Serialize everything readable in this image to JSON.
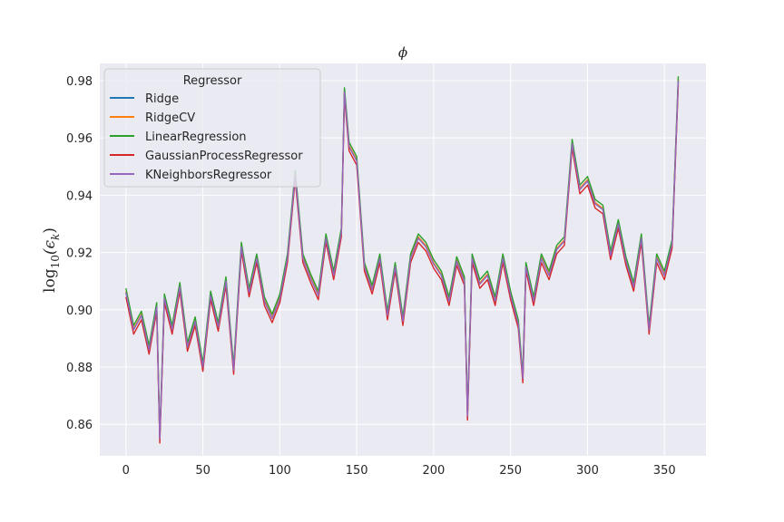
{
  "chart_data": {
    "type": "line",
    "title": "ϕ",
    "xlabel": "",
    "ylabel": "log10(εk)",
    "ylabel_parts": {
      "base": "log",
      "sub": "10",
      "arg": "(ϵ",
      "argsub": "k",
      "close": ")"
    },
    "xlim": [
      -17,
      377
    ],
    "ylim": [
      0.849,
      0.986
    ],
    "xticks": [
      0,
      50,
      100,
      150,
      200,
      250,
      300,
      350
    ],
    "yticks": [
      0.86,
      0.88,
      0.9,
      0.92,
      0.94,
      0.96,
      0.98
    ],
    "ytick_labels": [
      "0.86",
      "0.88",
      "0.90",
      "0.92",
      "0.94",
      "0.96",
      "0.98"
    ],
    "grid": true,
    "legend": {
      "title": "Regressor",
      "placement": "upper-left"
    },
    "series": [
      {
        "name": "Ridge",
        "color": "#1f77b4",
        "offset": 0.0
      },
      {
        "name": "RidgeCV",
        "color": "#ff7f0e",
        "offset": 0.0004
      },
      {
        "name": "LinearRegression",
        "color": "#2ca02c",
        "offset": 0.0015
      },
      {
        "name": "GaussianProcessRegressor",
        "color": "#d62728",
        "offset": -0.0015
      },
      {
        "name": "KNeighborsRegressor",
        "color": "#9467bd",
        "offset": 0.0
      }
    ],
    "x": [
      0,
      5,
      10,
      15,
      20,
      22,
      25,
      30,
      35,
      40,
      45,
      50,
      55,
      60,
      65,
      70,
      75,
      80,
      85,
      90,
      95,
      100,
      105,
      110,
      115,
      120,
      125,
      130,
      135,
      140,
      142,
      145,
      150,
      155,
      160,
      165,
      170,
      175,
      180,
      185,
      190,
      195,
      200,
      205,
      210,
      215,
      220,
      222,
      225,
      230,
      235,
      240,
      245,
      250,
      255,
      258,
      260,
      265,
      270,
      275,
      280,
      285,
      290,
      295,
      300,
      305,
      310,
      315,
      320,
      325,
      330,
      335,
      340,
      345,
      350,
      355,
      359
    ],
    "values": [
      0.906,
      0.893,
      0.898,
      0.886,
      0.901,
      0.855,
      0.904,
      0.893,
      0.908,
      0.887,
      0.896,
      0.88,
      0.905,
      0.894,
      0.91,
      0.879,
      0.922,
      0.906,
      0.918,
      0.903,
      0.897,
      0.904,
      0.918,
      0.947,
      0.918,
      0.911,
      0.905,
      0.925,
      0.912,
      0.927,
      0.976,
      0.957,
      0.952,
      0.915,
      0.907,
      0.918,
      0.898,
      0.915,
      0.896,
      0.918,
      0.925,
      0.922,
      0.916,
      0.912,
      0.903,
      0.917,
      0.91,
      0.863,
      0.918,
      0.909,
      0.912,
      0.903,
      0.918,
      0.905,
      0.895,
      0.876,
      0.915,
      0.903,
      0.918,
      0.912,
      0.921,
      0.924,
      0.958,
      0.942,
      0.945,
      0.937,
      0.935,
      0.919,
      0.93,
      0.917,
      0.908,
      0.925,
      0.893,
      0.918,
      0.912,
      0.923,
      0.98
    ]
  }
}
